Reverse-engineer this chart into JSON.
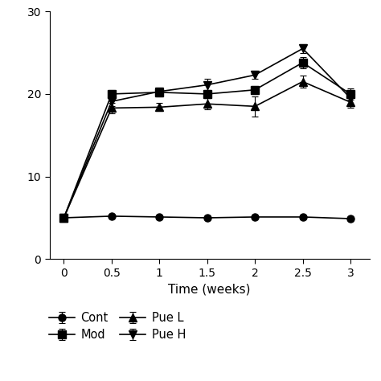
{
  "x": [
    0,
    0.5,
    1,
    1.5,
    2,
    2.5,
    3
  ],
  "cont": {
    "y": [
      5.0,
      5.2,
      5.1,
      5.0,
      5.1,
      5.1,
      4.9
    ],
    "yerr": [
      0.2,
      0.2,
      0.2,
      0.2,
      0.2,
      0.2,
      0.2
    ]
  },
  "mod": {
    "y": [
      5.0,
      20.0,
      20.2,
      20.0,
      20.5,
      23.8,
      20.0
    ],
    "yerr": [
      0.3,
      0.5,
      0.5,
      0.5,
      0.5,
      0.7,
      0.7
    ]
  },
  "pueL": {
    "y": [
      5.0,
      18.3,
      18.4,
      18.8,
      18.5,
      21.5,
      19.0
    ],
    "yerr": [
      0.3,
      0.6,
      0.5,
      0.7,
      1.2,
      0.7,
      0.7
    ]
  },
  "pueH": {
    "y": [
      5.0,
      19.1,
      20.3,
      21.1,
      22.3,
      25.5,
      19.5
    ],
    "yerr": [
      0.3,
      0.6,
      0.5,
      0.7,
      0.5,
      0.5,
      0.8
    ]
  },
  "xlim": [
    -0.15,
    3.2
  ],
  "ylim": [
    0,
    30
  ],
  "yticks": [
    0,
    10,
    20,
    30
  ],
  "xticks": [
    0,
    0.5,
    1,
    1.5,
    2,
    2.5,
    3
  ],
  "xticklabels": [
    "0",
    "0.5",
    "1",
    "1.5",
    "2",
    "2.5",
    "3"
  ],
  "xlabel": "Time (weeks)",
  "color": "#000000"
}
